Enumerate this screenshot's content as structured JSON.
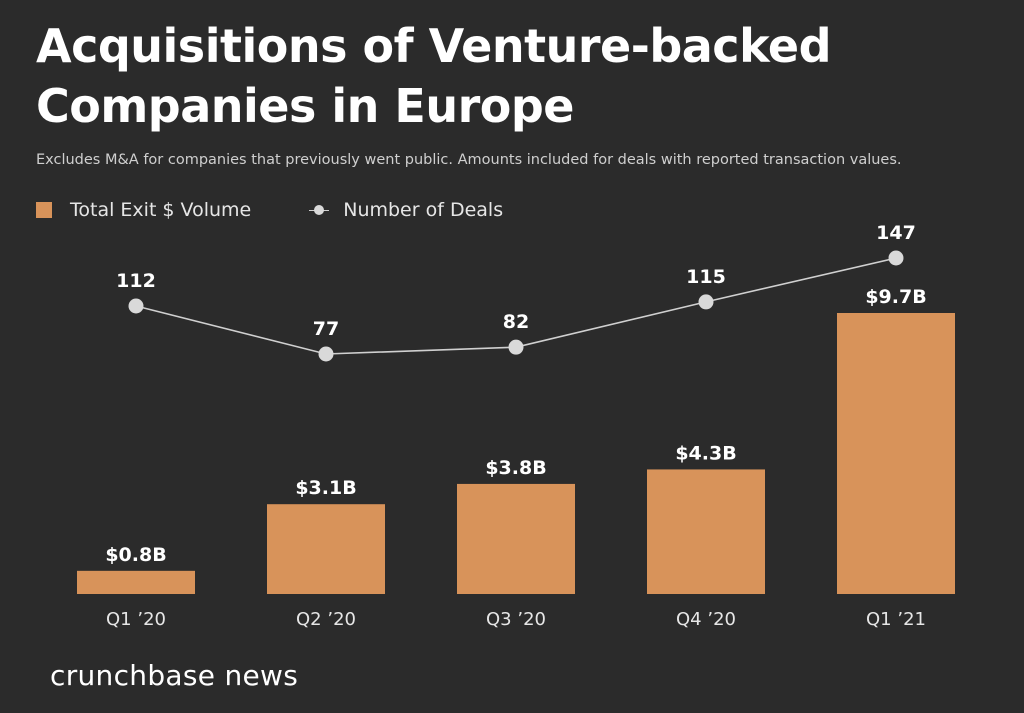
{
  "title": "Acquisitions of Venture-backed Companies in Europe",
  "subtitle": "Excludes M&A for companies that previously went public. Amounts included for deals with reported transaction values.",
  "brand": "crunchbase news",
  "colors": {
    "background": "#2b2b2b",
    "bar": "#d8935a",
    "line": "#d0d0d0",
    "point": "#d9d9d9",
    "text": "#ffffff"
  },
  "chart_data": {
    "type": "bar",
    "categories": [
      "Q1 ’20",
      "Q2 ’20",
      "Q3 ’20",
      "Q4 ’20",
      "Q1 ’21"
    ],
    "series": [
      {
        "name": "Total Exit $ Volume",
        "type": "bar",
        "values": [
          0.8,
          3.1,
          3.8,
          4.3,
          9.7
        ],
        "labels": [
          "$0.8B",
          "$3.1B",
          "$3.8B",
          "$4.3B",
          "$9.7B"
        ]
      },
      {
        "name": "Number of Deals",
        "type": "line",
        "values": [
          112,
          77,
          82,
          115,
          147
        ],
        "labels": [
          "112",
          "77",
          "82",
          "115",
          "147"
        ]
      }
    ],
    "legend": "top-left",
    "grid": false
  }
}
